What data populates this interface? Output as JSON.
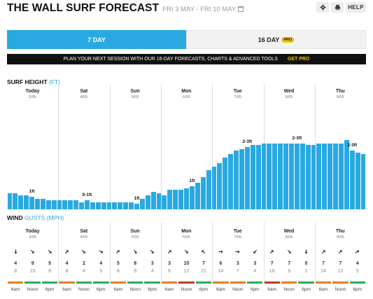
{
  "header": {
    "title": "THE WALL SURF FORECAST",
    "date_range": "FRI 3 MAY - FRI 10 MAY",
    "help_label": "HELP"
  },
  "tabs": [
    {
      "label": "7 DAY",
      "active": true
    },
    {
      "label": "16 DAY",
      "badge": "PRO",
      "active": false
    }
  ],
  "promo": {
    "text": "PLAN YOUR NEXT SESSION WITH OUR 16-DAY FORECASTS, CHARTS & ADVANCED TOOLS",
    "cta": "GET PRO"
  },
  "surf": {
    "label": "SURF HEIGHT",
    "unit": "(FT)"
  },
  "wind": {
    "label": "WIND",
    "unit": "GUSTS (MPH)"
  },
  "days": [
    {
      "name": "Today",
      "date": "3/05"
    },
    {
      "name": "Sat",
      "date": "4/05"
    },
    {
      "name": "Sun",
      "date": "5/05"
    },
    {
      "name": "Mon",
      "date": "6/05"
    },
    {
      "name": "Tue",
      "date": "7/05"
    },
    {
      "name": "Wed",
      "date": "8/05"
    },
    {
      "name": "Thu",
      "date": "9/05"
    }
  ],
  "chart_data": {
    "type": "bar",
    "title": "SURF HEIGHT (FT)",
    "values": [
      0.45,
      0.45,
      0.4,
      0.4,
      0.35,
      0.3,
      0.3,
      0.25,
      0.25,
      0.25,
      0.25,
      0.25,
      0.25,
      0.2,
      0.25,
      0.2,
      0.2,
      0.2,
      0.2,
      0.2,
      0.2,
      0.2,
      0.2,
      0.15,
      0.3,
      0.4,
      0.5,
      0.45,
      0.4,
      0.55,
      0.55,
      0.55,
      0.6,
      0.65,
      0.75,
      0.9,
      1.1,
      1.2,
      1.3,
      1.45,
      1.55,
      1.65,
      1.7,
      1.75,
      1.8,
      1.8,
      1.85,
      1.85,
      1.85,
      1.85,
      1.85,
      1.85,
      1.85,
      1.85,
      1.8,
      1.8,
      1.85,
      1.85,
      1.85,
      1.85,
      1.85,
      1.95,
      1.65,
      1.6,
      1.55
    ],
    "annotations": [
      {
        "bar": 4,
        "text": "1ft"
      },
      {
        "bar": 14,
        "text": "0-1ft"
      },
      {
        "bar": 23,
        "text": "1ft"
      },
      {
        "bar": 33,
        "text": "1ft"
      },
      {
        "bar": 43,
        "text": "2-3ft"
      },
      {
        "bar": 52,
        "text": "2-3ft"
      },
      {
        "bar": 62,
        "text": "2-3ft"
      }
    ]
  },
  "wind_data": [
    {
      "time": "6am",
      "speed": 4,
      "gust": 8,
      "dir": 180,
      "color": "#e67e22"
    },
    {
      "time": "Noon",
      "speed": 9,
      "gust": 15,
      "dir": 135,
      "color": "#27ae60"
    },
    {
      "time": "6pm",
      "speed": 5,
      "gust": 9,
      "dir": 135,
      "color": "#27ae60"
    },
    {
      "time": "6am",
      "speed": 4,
      "gust": 8,
      "dir": 45,
      "color": "#e67e22"
    },
    {
      "time": "Noon",
      "speed": 2,
      "gust": 4,
      "dir": 135,
      "color": "#27ae60"
    },
    {
      "time": "6pm",
      "speed": 4,
      "gust": 5,
      "dir": 120,
      "color": "#27ae60"
    },
    {
      "time": "6am",
      "speed": 5,
      "gust": 8,
      "dir": 45,
      "color": "#e67e22"
    },
    {
      "time": "Noon",
      "speed": 8,
      "gust": 9,
      "dir": 150,
      "color": "#27ae60"
    },
    {
      "time": "6pm",
      "speed": 3,
      "gust": 4,
      "dir": 135,
      "color": "#27ae60"
    },
    {
      "time": "6am",
      "speed": 3,
      "gust": 6,
      "dir": 45,
      "color": "#e67e22"
    },
    {
      "time": "Noon",
      "speed": 10,
      "gust": 12,
      "dir": 135,
      "color": "#c0392b"
    },
    {
      "time": "6pm",
      "speed": 7,
      "gust": 21,
      "dir": 315,
      "color": "#27ae60"
    },
    {
      "time": "6am",
      "speed": 6,
      "gust": 14,
      "dir": 90,
      "color": "#e67e22"
    },
    {
      "time": "Noon",
      "speed": 3,
      "gust": 7,
      "dir": 90,
      "color": "#e67e22"
    },
    {
      "time": "6pm",
      "speed": 3,
      "gust": 4,
      "dir": 225,
      "color": "#27ae60"
    },
    {
      "time": "6am",
      "speed": 7,
      "gust": 16,
      "dir": 45,
      "color": "#c0392b"
    },
    {
      "time": "Noon",
      "speed": 7,
      "gust": 9,
      "dir": 135,
      "color": "#e67e22"
    },
    {
      "time": "6pm",
      "speed": 0,
      "gust": 1,
      "dir": 180,
      "color": "#27ae60"
    },
    {
      "time": "6am",
      "speed": 7,
      "gust": 14,
      "dir": 45,
      "color": "#e67e22"
    },
    {
      "time": "Noon",
      "speed": 7,
      "gust": 12,
      "dir": 45,
      "color": "#e67e22"
    },
    {
      "time": "6pm",
      "speed": 4,
      "gust": 5,
      "dir": 60,
      "color": "#27ae60"
    }
  ]
}
